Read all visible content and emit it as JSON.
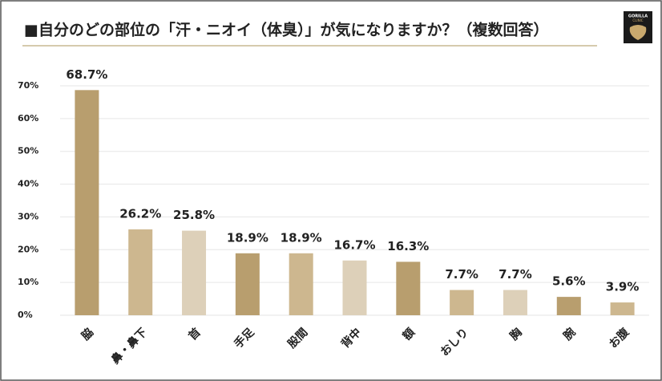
{
  "chart_data": {
    "type": "bar",
    "title": "■自分のどの部位の「汗・ニオイ（体臭）」が気になりますか？（複数回答）",
    "logo": [
      "GORILLA",
      "CLINIC"
    ],
    "categories": [
      "脇",
      "鼻・鼻下",
      "首",
      "手足",
      "股間",
      "背中",
      "額",
      "おしり",
      "胸",
      "腕",
      "お腹"
    ],
    "values": [
      68.7,
      26.2,
      25.8,
      18.9,
      18.9,
      16.7,
      16.3,
      7.7,
      7.7,
      5.6,
      3.9
    ],
    "value_labels": [
      "68.7%",
      "26.2%",
      "25.8%",
      "18.9%",
      "18.9%",
      "16.7%",
      "16.3%",
      "7.7%",
      "7.7%",
      "5.6%",
      "3.9%"
    ],
    "colors": [
      "#b89e6e",
      "#cdb78f",
      "#ddd0b9",
      "#b89e6e",
      "#cdb78f",
      "#ddd0b9",
      "#b89e6e",
      "#cdb78f",
      "#ddd0b9",
      "#b89e6e",
      "#cdb78f"
    ],
    "ylim": [
      0,
      70
    ],
    "yticks": [
      {
        "value": 0,
        "label": "0%"
      },
      {
        "value": 10,
        "label": "10%"
      },
      {
        "value": 20,
        "label": "20%"
      },
      {
        "value": 30,
        "label": "30%"
      },
      {
        "value": 40,
        "label": "40%"
      },
      {
        "value": 50,
        "label": "50%"
      },
      {
        "value": 60,
        "label": "60%"
      },
      {
        "value": 70,
        "label": "70%"
      }
    ],
    "grid": true
  }
}
